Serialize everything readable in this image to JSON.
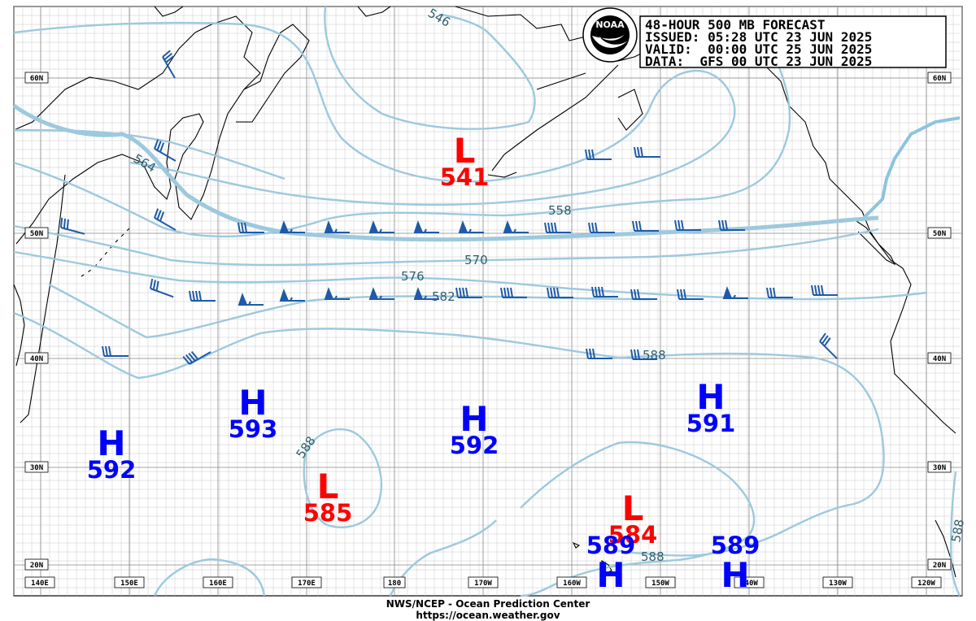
{
  "info_box": {
    "title": "48-HOUR 500 MB FORECAST",
    "issued": "ISSUED: 05:28 UTC 23 JUN 2025",
    "valid": "VALID:  00:00 UTC 25 JUN 2025",
    "data": "DATA:  GFS 00 UTC 23 JUN 2025"
  },
  "logo": {
    "text": "NOAA",
    "icon": "noaa-logo-icon"
  },
  "footer": {
    "line1": "NWS/NCEP - Ocean Prediction Center",
    "line2": "https://ocean.weather.gov"
  },
  "lat_labels": [
    "60N",
    "50N",
    "40N",
    "30N",
    "20N"
  ],
  "lon_labels": [
    "140E",
    "150E",
    "160E",
    "170E",
    "180",
    "170W",
    "160W",
    "150W",
    "140W",
    "130W",
    "120W"
  ],
  "contour_labels": [
    "546",
    "564",
    "558",
    "570",
    "576",
    "582",
    "588",
    "588",
    "588",
    "588"
  ],
  "pressure_centers": [
    {
      "type": "L",
      "value": "541"
    },
    {
      "type": "H",
      "value": "593"
    },
    {
      "type": "H",
      "value": "592"
    },
    {
      "type": "H",
      "value": "592"
    },
    {
      "type": "H",
      "value": "591"
    },
    {
      "type": "L",
      "value": "585"
    },
    {
      "type": "L",
      "value": "584"
    },
    {
      "type": "H",
      "value": "589"
    },
    {
      "type": "H",
      "value": "589"
    }
  ],
  "colors": {
    "contour": "#9dc9de",
    "coast": "#000000",
    "grid": "#bfbfbf",
    "high": "#0000ff",
    "low": "#ff0000",
    "barb": "#1e5aa8"
  }
}
